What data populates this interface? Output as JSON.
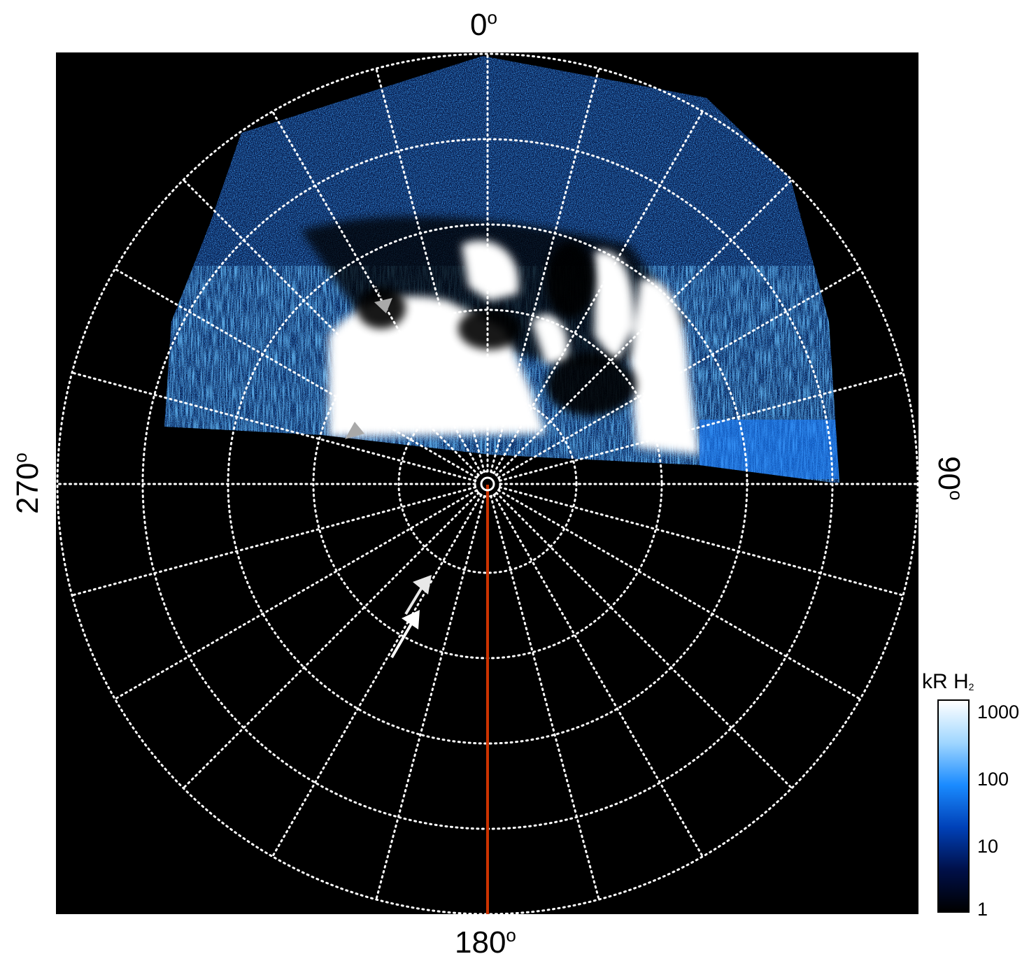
{
  "labels": {
    "top": "0",
    "right": "90",
    "bottom": "180",
    "left": "270",
    "degree_symbol": "o"
  },
  "colorbar": {
    "title_main": "kR H",
    "title_sub": "2",
    "ticks": [
      "1000",
      "100",
      "10",
      "1"
    ],
    "scale": "log",
    "range": [
      1,
      1000
    ],
    "colors": [
      "#000000",
      "#00104a",
      "#0041b8",
      "#1a8bff",
      "#9fd6ff",
      "#ffffff"
    ]
  },
  "colors": {
    "background": "#000000",
    "grid": "#ffffff",
    "meridian_line": "#cc3300",
    "arrow_gray": "#a9a9a9",
    "arrow_white": "#f2f2f2"
  },
  "icons": [
    "arrow-icon"
  ]
}
